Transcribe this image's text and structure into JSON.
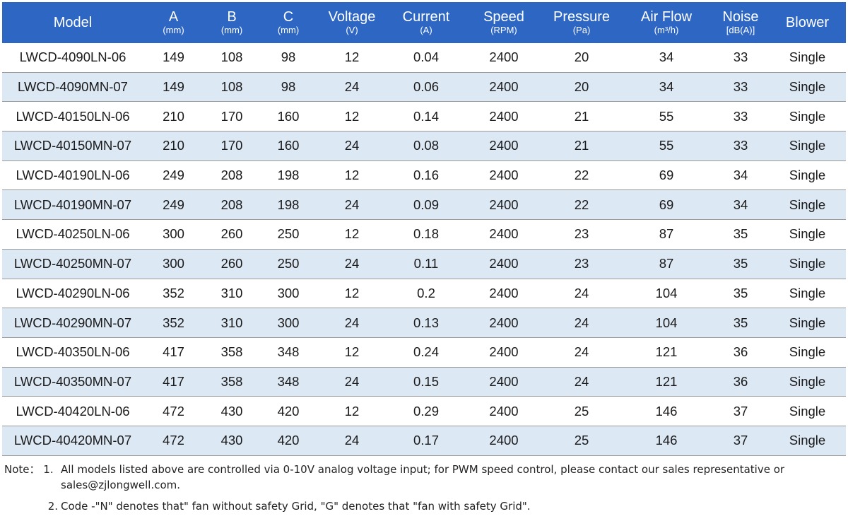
{
  "table": {
    "headers": [
      {
        "label": "Model",
        "unit": ""
      },
      {
        "label": "A",
        "unit": "(mm)"
      },
      {
        "label": "B",
        "unit": "(mm)"
      },
      {
        "label": "C",
        "unit": "(mm)"
      },
      {
        "label": "Voltage",
        "unit": "(V)"
      },
      {
        "label": "Current",
        "unit": "(A)"
      },
      {
        "label": "Speed",
        "unit": "(RPM)"
      },
      {
        "label": "Pressure",
        "unit": "(Pa)"
      },
      {
        "label": "Air Flow",
        "unit": "(m³/h)"
      },
      {
        "label": "Noise",
        "unit": "[dB(A)]"
      },
      {
        "label": "Blower",
        "unit": ""
      }
    ],
    "rows": [
      [
        "LWCD-4090LN-06",
        "149",
        "108",
        "98",
        "12",
        "0.04",
        "2400",
        "20",
        "34",
        "33",
        "Single"
      ],
      [
        "LWCD-4090MN-07",
        "149",
        "108",
        "98",
        "24",
        "0.06",
        "2400",
        "20",
        "34",
        "33",
        "Single"
      ],
      [
        "LWCD-40150LN-06",
        "210",
        "170",
        "160",
        "12",
        "0.14",
        "2400",
        "21",
        "55",
        "33",
        "Single"
      ],
      [
        "LWCD-40150MN-07",
        "210",
        "170",
        "160",
        "24",
        "0.08",
        "2400",
        "21",
        "55",
        "33",
        "Single"
      ],
      [
        "LWCD-40190LN-06",
        "249",
        "208",
        "198",
        "12",
        "0.16",
        "2400",
        "22",
        "69",
        "34",
        "Single"
      ],
      [
        "LWCD-40190MN-07",
        "249",
        "208",
        "198",
        "24",
        "0.09",
        "2400",
        "22",
        "69",
        "34",
        "Single"
      ],
      [
        "LWCD-40250LN-06",
        "300",
        "260",
        "250",
        "12",
        "0.18",
        "2400",
        "23",
        "87",
        "35",
        "Single"
      ],
      [
        "LWCD-40250MN-07",
        "300",
        "260",
        "250",
        "24",
        "0.11",
        "2400",
        "23",
        "87",
        "35",
        "Single"
      ],
      [
        "LWCD-40290LN-06",
        "352",
        "310",
        "300",
        "12",
        "0.2",
        "2400",
        "24",
        "104",
        "35",
        "Single"
      ],
      [
        "LWCD-40290MN-07",
        "352",
        "310",
        "300",
        "24",
        "0.13",
        "2400",
        "24",
        "104",
        "35",
        "Single"
      ],
      [
        "LWCD-40350LN-06",
        "417",
        "358",
        "348",
        "12",
        "0.24",
        "2400",
        "24",
        "121",
        "36",
        "Single"
      ],
      [
        "LWCD-40350MN-07",
        "417",
        "358",
        "348",
        "24",
        "0.15",
        "2400",
        "24",
        "121",
        "36",
        "Single"
      ],
      [
        "LWCD-40420LN-06",
        "472",
        "430",
        "420",
        "12",
        "0.29",
        "2400",
        "25",
        "146",
        "37",
        "Single"
      ],
      [
        "LWCD-40420MN-07",
        "472",
        "430",
        "420",
        "24",
        "0.17",
        "2400",
        "25",
        "146",
        "37",
        "Single"
      ]
    ],
    "colors": {
      "header_bg": "#2e66c4",
      "header_text": "#ffffff",
      "alt_row_bg": "#dde8f5",
      "row_border": "#9a9a9a"
    }
  },
  "notes": {
    "prefix": "Note：",
    "items": [
      {
        "number": "1.",
        "text": "All models listed above are controlled via 0-10V analog voltage input; for PWM speed control, please contact our sales representative or sales@zjlongwell.com."
      },
      {
        "number": "2.",
        "text": "Code -\"N\" denotes that\" fan without safety Grid, \"G\" denotes that \"fan with safety Grid\"."
      }
    ]
  }
}
